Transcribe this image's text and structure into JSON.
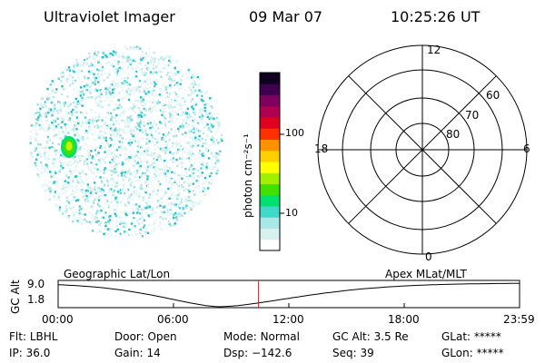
{
  "header": {
    "title": "Ultraviolet Imager",
    "date": "09 Mar 07",
    "time": "10:25:26 UT"
  },
  "colorbar": {
    "unit_label": "photon cm⁻²s⁻¹",
    "ticks": [
      {
        "label": "100",
        "value": 100
      },
      {
        "label": "10",
        "value": 10
      }
    ],
    "colors": [
      "#ffffff",
      "#d8f0f0",
      "#a8e8e8",
      "#40d8c8",
      "#00e070",
      "#40e000",
      "#a0f000",
      "#ffff00",
      "#ffd000",
      "#ff9000",
      "#ff3000",
      "#e00020",
      "#b00050",
      "#800060",
      "#400050",
      "#100020"
    ]
  },
  "polar_plot": {
    "labels_mlt": {
      "top": "12",
      "left": "18",
      "right": "6",
      "bottom": "0"
    },
    "labels_lat": [
      "60",
      "70",
      "80"
    ]
  },
  "timeline": {
    "left_title": "Geographic Lat/Lon",
    "right_title": "Apex MLat/MLT",
    "axis_label": "GC Alt",
    "y_ticks": [
      "9.0",
      "1.8"
    ],
    "x_ticks": [
      "00:00",
      "06:00",
      "12:00",
      "18:00",
      "23:59"
    ],
    "marker_time_hours": 10.42,
    "marker_color": "#c83030"
  },
  "status": {
    "row1": [
      {
        "key": "Flt:",
        "value": "LBHL"
      },
      {
        "key": "Door:",
        "value": "Open"
      },
      {
        "key": "Mode:",
        "value": "Normal"
      },
      {
        "key": "GC Alt:",
        "value": "3.5 Re"
      },
      {
        "key": "GLat:",
        "value": "*****"
      }
    ],
    "row2": [
      {
        "key": "IP:",
        "value": "36.0"
      },
      {
        "key": "Gain:",
        "value": "14"
      },
      {
        "key": "Dsp:",
        "value": "−142.6"
      },
      {
        "key": "Seq:",
        "value": "39"
      },
      {
        "key": "GLon:",
        "value": "*****"
      }
    ]
  }
}
